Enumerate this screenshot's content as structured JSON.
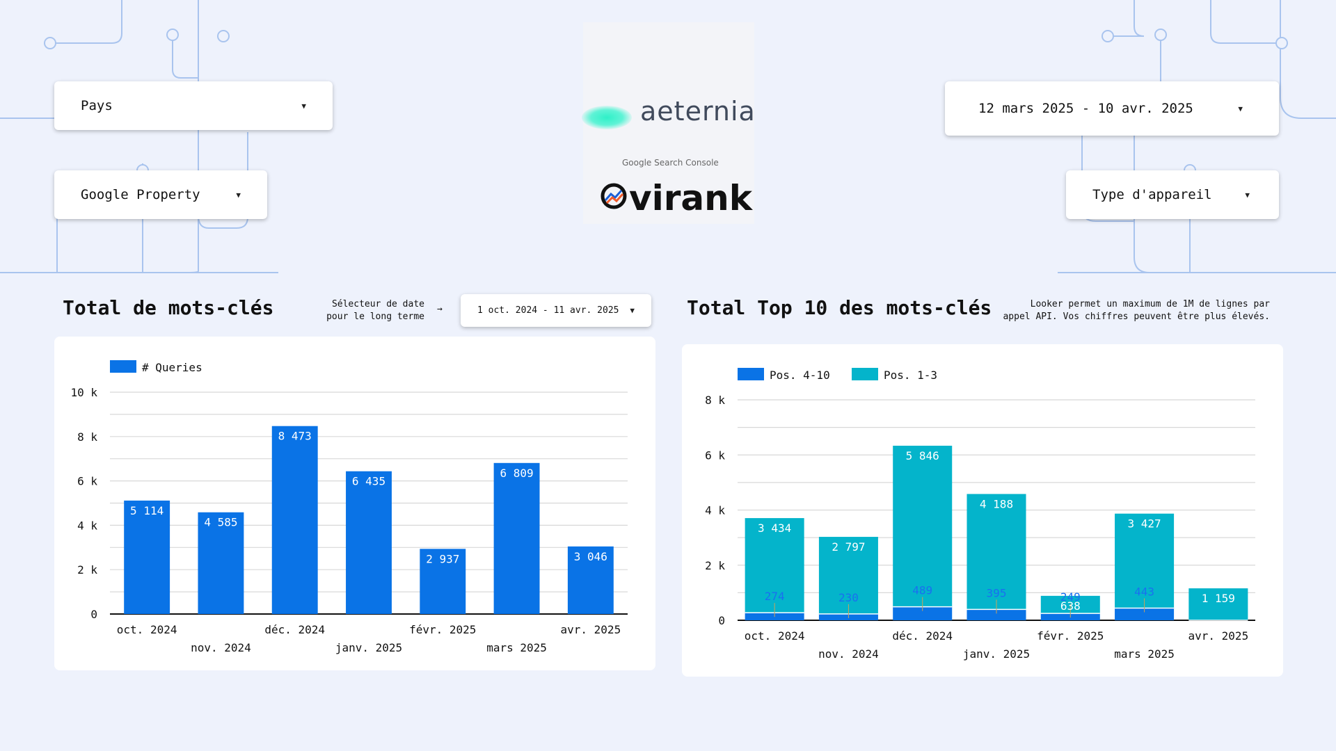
{
  "filters": {
    "country_label": "Pays",
    "property_label": "Google Property",
    "date_range": "12 mars 2025 - 10 avr. 2025",
    "device_label": "Type d'appareil",
    "long_date_range": "1 oct. 2024 - 11 avr. 2025",
    "long_date_note_line1": "Sélecteur de date",
    "long_date_note_line2": "pour le long terme",
    "arrow": "→"
  },
  "logos": {
    "brand1": "aeternia",
    "gsc": "Google Search Console",
    "brand2": "virank"
  },
  "left_panel": {
    "title": "Total de mots-clés"
  },
  "right_panel": {
    "title": "Total Top 10 des mots-clés",
    "note_line1": "Looker permet un maximum de 1M de lignes par",
    "note_line2": "appel API. Vos chiffres peuvent être plus élevés."
  },
  "colors": {
    "blue": "#0a73e6",
    "teal": "#04b4cb",
    "grid": "#d8d8d8",
    "background": "#eef2fc"
  },
  "chart_data": [
    {
      "type": "bar",
      "categories": [
        "oct. 2024",
        "nov. 2024",
        "déc. 2024",
        "janv. 2025",
        "févr. 2025",
        "mars 2025",
        "avr. 2025"
      ],
      "series": [
        {
          "name": "# Queries",
          "values": [
            5114,
            4585,
            8473,
            6435,
            2937,
            6809,
            3046
          ]
        }
      ],
      "value_labels": [
        "5 114",
        "4 585",
        "8 473",
        "6 435",
        "2 937",
        "6 809",
        "3 046"
      ],
      "ylim": [
        0,
        10000
      ],
      "y_ticks": [
        0,
        2000,
        4000,
        6000,
        8000,
        10000
      ],
      "y_tick_labels": [
        "0",
        "2 k",
        "4 k",
        "6 k",
        "8 k",
        "10 k"
      ],
      "legend": "top-left",
      "grid": true
    },
    {
      "type": "bar",
      "stacked": true,
      "categories": [
        "oct. 2024",
        "nov. 2024",
        "déc. 2024",
        "janv. 2025",
        "févr. 2025",
        "mars 2025",
        "avr. 2025"
      ],
      "series": [
        {
          "name": "Pos. 4-10",
          "values": [
            274,
            230,
            489,
            395,
            249,
            443,
            0
          ]
        },
        {
          "name": "Pos. 1-3",
          "values": [
            3434,
            2797,
            5846,
            4188,
            638,
            3427,
            1159
          ]
        }
      ],
      "value_labels_pos_4_10": [
        "274",
        "230",
        "489",
        "395",
        "249",
        "443",
        ""
      ],
      "value_labels_pos_1_3": [
        "3 434",
        "2 797",
        "5 846",
        "4 188",
        "638",
        "3 427",
        "1 159"
      ],
      "ylim": [
        0,
        8000
      ],
      "y_ticks": [
        0,
        2000,
        4000,
        6000,
        8000
      ],
      "y_tick_labels": [
        "0",
        "2 k",
        "4 k",
        "6 k",
        "8 k"
      ],
      "legend": "top-left",
      "grid": true
    }
  ]
}
